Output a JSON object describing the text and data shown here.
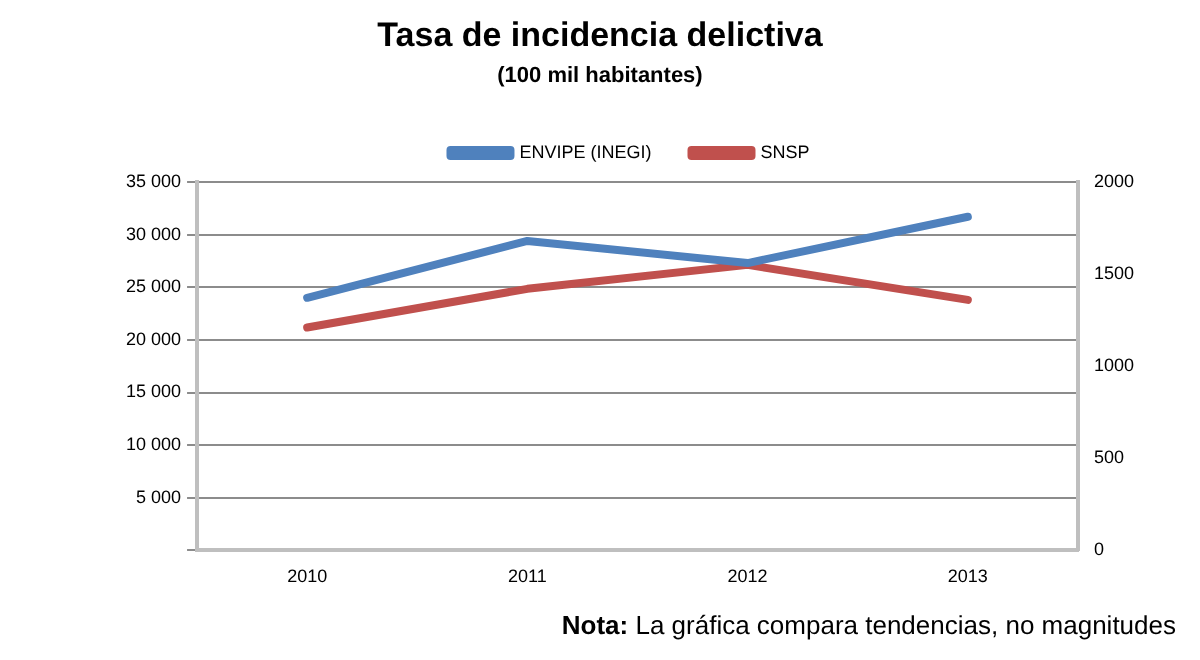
{
  "chart_data": {
    "type": "line",
    "title": "Tasa de incidencia delictiva",
    "subtitle": "(100 mil habitantes)",
    "categories": [
      "2010",
      "2011",
      "2012",
      "2013"
    ],
    "series": [
      {
        "name": "ENVIPE (INEGI)",
        "color": "#4f81bd",
        "values": [
          24000,
          29400,
          27300,
          31700
        ]
      },
      {
        "name": "SNSP",
        "color": "#c0504d",
        "values": [
          1210,
          1420,
          1550,
          1360
        ],
        "axis": "y2"
      }
    ],
    "ylim": [
      0,
      35000
    ],
    "yticks": [
      {
        "value": 0,
        "label": null
      },
      {
        "value": 5000,
        "label": "5 000"
      },
      {
        "value": 10000,
        "label": "10 000"
      },
      {
        "value": 15000,
        "label": "15 000"
      },
      {
        "value": 20000,
        "label": "20 000"
      },
      {
        "value": 25000,
        "label": "25 000"
      },
      {
        "value": 30000,
        "label": "30 000"
      },
      {
        "value": 35000,
        "label": "35 000"
      }
    ],
    "y2lim": [
      0,
      2000
    ],
    "y2ticks": [
      0,
      500,
      1000,
      1500,
      2000
    ],
    "grid": "y",
    "legend": "top",
    "marker": "none",
    "line_style": "solid",
    "annotations": [
      "Nota: La gráfica compara tendencias, no magnitudes"
    ]
  }
}
